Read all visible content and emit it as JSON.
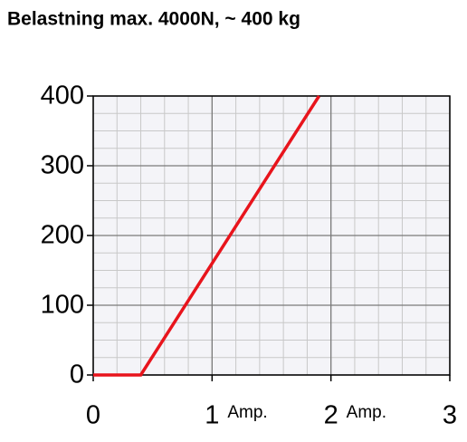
{
  "chart_data": {
    "type": "line",
    "title": "Belastning max. 4000N, ~ 400 kg",
    "x": [
      0,
      0.4,
      1.9
    ],
    "series": [
      {
        "color": "#e8141c",
        "values": [
          0,
          0,
          400
        ]
      }
    ],
    "xlim": [
      0,
      3
    ],
    "xticks": [
      0,
      1,
      2,
      3
    ],
    "ylim": [
      0,
      400
    ],
    "yticks": [
      0,
      100,
      200,
      300,
      400
    ],
    "xminor": 0.2,
    "yminor": 25,
    "grid": true,
    "annotations": [
      "Amp.",
      "Amp."
    ]
  }
}
